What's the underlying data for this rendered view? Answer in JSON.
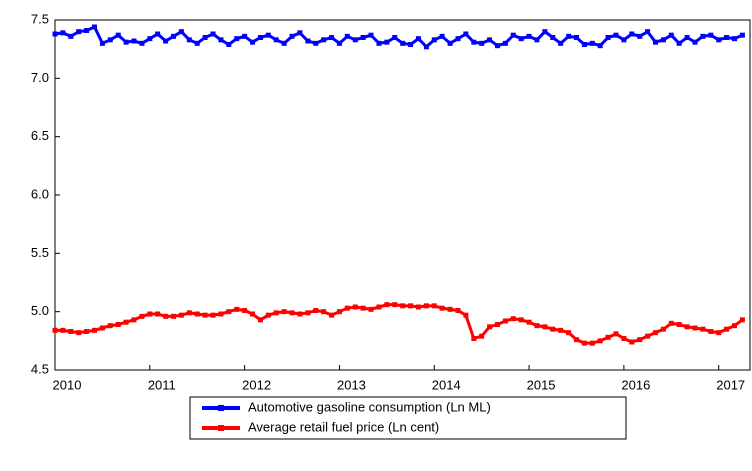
{
  "chart_data": {
    "type": "line",
    "x": [
      2010,
      2010.083,
      2010.167,
      2010.25,
      2010.333,
      2010.417,
      2010.5,
      2010.583,
      2010.667,
      2010.75,
      2010.833,
      2010.917,
      2011,
      2011.083,
      2011.167,
      2011.25,
      2011.333,
      2011.417,
      2011.5,
      2011.583,
      2011.667,
      2011.75,
      2011.833,
      2011.917,
      2012,
      2012.083,
      2012.167,
      2012.25,
      2012.333,
      2012.417,
      2012.5,
      2012.583,
      2012.667,
      2012.75,
      2012.833,
      2012.917,
      2013,
      2013.083,
      2013.167,
      2013.25,
      2013.333,
      2013.417,
      2013.5,
      2013.583,
      2013.667,
      2013.75,
      2013.833,
      2013.917,
      2014,
      2014.083,
      2014.167,
      2014.25,
      2014.333,
      2014.417,
      2014.5,
      2014.583,
      2014.667,
      2014.75,
      2014.833,
      2014.917,
      2015,
      2015.083,
      2015.167,
      2015.25,
      2015.333,
      2015.417,
      2015.5,
      2015.583,
      2015.667,
      2015.75,
      2015.833,
      2015.917,
      2016,
      2016.083,
      2016.167,
      2016.25,
      2016.333,
      2016.417,
      2016.5,
      2016.583,
      2016.667,
      2016.75,
      2016.833,
      2016.917,
      2017,
      2017.083,
      2017.167,
      2017.25
    ],
    "series": [
      {
        "name": "Automotive gasoline consumption (Ln ML)",
        "color": "#0000ff",
        "values": [
          7.38,
          7.39,
          7.36,
          7.4,
          7.41,
          7.44,
          7.3,
          7.33,
          7.37,
          7.31,
          7.32,
          7.3,
          7.34,
          7.38,
          7.32,
          7.36,
          7.4,
          7.33,
          7.3,
          7.35,
          7.38,
          7.33,
          7.29,
          7.34,
          7.36,
          7.31,
          7.35,
          7.37,
          7.33,
          7.3,
          7.36,
          7.39,
          7.32,
          7.3,
          7.33,
          7.35,
          7.3,
          7.36,
          7.33,
          7.35,
          7.37,
          7.3,
          7.31,
          7.35,
          7.3,
          7.29,
          7.34,
          7.27,
          7.33,
          7.36,
          7.3,
          7.34,
          7.38,
          7.31,
          7.3,
          7.33,
          7.28,
          7.3,
          7.37,
          7.34,
          7.36,
          7.33,
          7.4,
          7.35,
          7.3,
          7.36,
          7.35,
          7.29,
          7.3,
          7.28,
          7.35,
          7.37,
          7.33,
          7.38,
          7.36,
          7.4,
          7.31,
          7.33,
          7.37,
          7.3,
          7.35,
          7.31,
          7.36,
          7.37,
          7.33,
          7.35,
          7.34,
          7.37
        ]
      },
      {
        "name": "Average retail fuel price (Ln cent)",
        "color": "#ff0000",
        "values": [
          4.84,
          4.84,
          4.83,
          4.82,
          4.83,
          4.84,
          4.86,
          4.88,
          4.89,
          4.91,
          4.93,
          4.96,
          4.98,
          4.98,
          4.96,
          4.96,
          4.97,
          4.99,
          4.98,
          4.97,
          4.97,
          4.98,
          5.0,
          5.02,
          5.01,
          4.98,
          4.93,
          4.97,
          4.99,
          5.0,
          4.99,
          4.98,
          4.99,
          5.01,
          5.0,
          4.97,
          5.0,
          5.03,
          5.04,
          5.03,
          5.02,
          5.04,
          5.06,
          5.06,
          5.05,
          5.05,
          5.04,
          5.05,
          5.05,
          5.03,
          5.02,
          5.01,
          4.97,
          4.77,
          4.79,
          4.87,
          4.89,
          4.92,
          4.94,
          4.93,
          4.91,
          4.88,
          4.87,
          4.85,
          4.84,
          4.82,
          4.76,
          4.73,
          4.73,
          4.75,
          4.78,
          4.81,
          4.77,
          4.74,
          4.76,
          4.79,
          4.82,
          4.85,
          4.9,
          4.89,
          4.87,
          4.86,
          4.85,
          4.83,
          4.82,
          4.85,
          4.88,
          4.93
        ]
      }
    ],
    "xlim": [
      2010,
      2017.33
    ],
    "xticks": [
      2010,
      2011,
      2012,
      2013,
      2014,
      2015,
      2016,
      2017
    ],
    "ylim": [
      4.5,
      7.5
    ],
    "yticks": [
      4.5,
      {
        "value": 5,
        "label": "5.0"
      },
      5.5,
      {
        "value": 6,
        "label": "6.0"
      },
      6.5,
      {
        "value": 7,
        "label": "7.0"
      },
      7.5
    ],
    "legend": "bottom"
  }
}
